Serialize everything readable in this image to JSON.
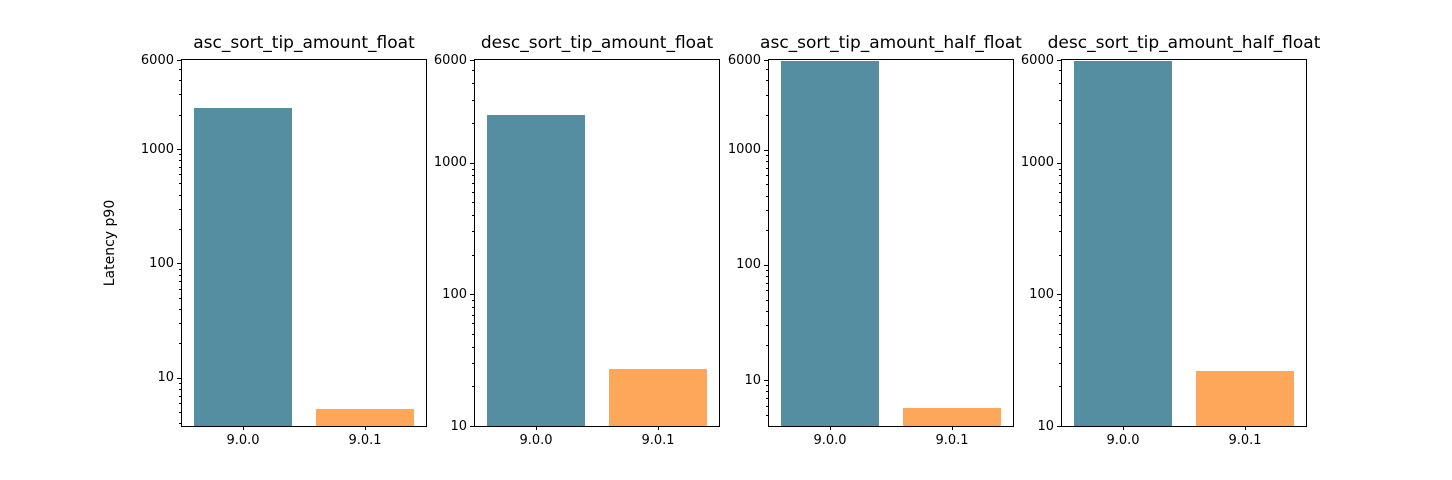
{
  "figure": {
    "ylabel": "Latency p90",
    "background_color": "#ffffff",
    "axis_color": "#000000",
    "bar_colors": [
      "#548ea0",
      "#fca75a"
    ],
    "yscale": "log",
    "ytick_labels": [
      "6000",
      "1000",
      "100",
      "10"
    ]
  },
  "chart_data": [
    {
      "type": "bar",
      "title": "asc_sort_tip_amount_float",
      "categories": [
        "9.0.0",
        "9.0.1"
      ],
      "values": [
        2300,
        5.3
      ],
      "xlabel": "",
      "ylabel": "Latency p90",
      "yscale": "log",
      "ylim": [
        3.8,
        6000
      ],
      "yticks": [
        6000,
        1000,
        100,
        10
      ],
      "grid": false,
      "legend": "none"
    },
    {
      "type": "bar",
      "title": "desc_sort_tip_amount_float",
      "categories": [
        "9.0.0",
        "9.0.1"
      ],
      "values": [
        2300,
        27
      ],
      "xlabel": "",
      "ylabel": "",
      "yscale": "log",
      "ylim": [
        10,
        6000
      ],
      "yticks": [
        6000,
        1000,
        100,
        10
      ],
      "grid": false,
      "legend": "none"
    },
    {
      "type": "bar",
      "title": "asc_sort_tip_amount_half_float",
      "categories": [
        "9.0.0",
        "9.0.1"
      ],
      "values": [
        5900,
        5.7
      ],
      "xlabel": "",
      "ylabel": "",
      "yscale": "log",
      "ylim": [
        4,
        6000
      ],
      "yticks": [
        6000,
        1000,
        100,
        10
      ],
      "grid": false,
      "legend": "none"
    },
    {
      "type": "bar",
      "title": "desc_sort_tip_amount_half_float",
      "categories": [
        "9.0.0",
        "9.0.1"
      ],
      "values": [
        5900,
        26
      ],
      "xlabel": "",
      "ylabel": "",
      "yscale": "log",
      "ylim": [
        10,
        6000
      ],
      "yticks": [
        6000,
        1000,
        100,
        10
      ],
      "grid": false,
      "legend": "none"
    }
  ]
}
